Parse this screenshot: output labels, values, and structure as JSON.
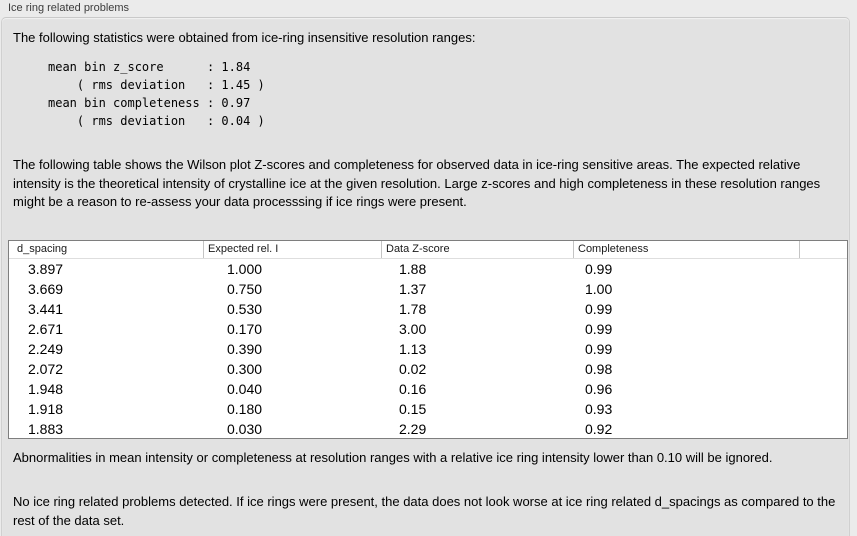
{
  "panel": {
    "title": "Ice ring related problems"
  },
  "intro": "The following statistics were obtained from ice-ring insensitive resolution ranges:",
  "stats_block": "mean bin z_score      : 1.84\n    ( rms deviation   : 1.45 )\nmean bin completeness : 0.97\n    ( rms deviation   : 0.04 )",
  "description": "The following table shows the Wilson plot Z-scores and completeness for observed data in ice-ring sensitive areas. The expected relative intensity is the theoretical intensity of crystalline ice at the given resolution. Large z-scores and high completeness in these resolution ranges might be a reason to re-assess your data processsing if ice rings were present.",
  "table": {
    "columns": [
      "d_spacing",
      "Expected rel. I",
      "Data Z-score",
      "Completeness",
      ""
    ],
    "rows": [
      [
        "3.897",
        "1.000",
        "1.88",
        "0.99"
      ],
      [
        "3.669",
        "0.750",
        "1.37",
        "1.00"
      ],
      [
        "3.441",
        "0.530",
        "1.78",
        "0.99"
      ],
      [
        "2.671",
        "0.170",
        "3.00",
        "0.99"
      ],
      [
        "2.249",
        "0.390",
        "1.13",
        "0.99"
      ],
      [
        "2.072",
        "0.300",
        "0.02",
        "0.98"
      ],
      [
        "1.948",
        "0.040",
        "0.16",
        "0.96"
      ],
      [
        "1.918",
        "0.180",
        "0.15",
        "0.93"
      ],
      [
        "1.883",
        "0.030",
        "2.29",
        "0.92"
      ]
    ]
  },
  "note_ignore": "Abnormalities in mean intensity or completeness at resolution ranges with a relative ice ring intensity lower than 0.10 will be ignored.",
  "conclusion": "No ice ring related problems detected. If ice rings were present, the data does not look worse at ice ring related d_spacings as compared to the rest of the data set."
}
